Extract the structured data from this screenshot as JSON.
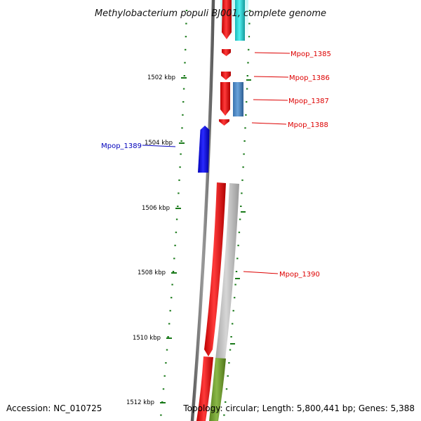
{
  "title": "Methylobacterium populi BJ001, complete genome",
  "footer": {
    "accession": "Accession: NC_010725",
    "summary": "Topology: circular; Length: 5,800,441 bp; Genes: 5,388"
  },
  "colors": {
    "backbone": "#777777",
    "ticks": "#1a7a1a",
    "label_forward": "#dd0000",
    "label_reverse": "#0000bb"
  },
  "ruler": [
    {
      "label": "1502 kbp"
    },
    {
      "label": "1504 kbp"
    },
    {
      "label": "1506 kbp"
    },
    {
      "label": "1508 kbp"
    },
    {
      "label": "1510 kbp"
    },
    {
      "label": "1512 kbp"
    }
  ],
  "gene_labels": [
    {
      "text": "Mpop_1385",
      "strand": "forward"
    },
    {
      "text": "Mpop_1386",
      "strand": "forward"
    },
    {
      "text": "Mpop_1387",
      "strand": "forward"
    },
    {
      "text": "Mpop_1388",
      "strand": "forward"
    },
    {
      "text": "Mpop_1389",
      "strand": "reverse"
    },
    {
      "text": "Mpop_1390",
      "strand": "forward"
    }
  ],
  "features": [
    {
      "name": "red-cds",
      "color": "#ee1111"
    },
    {
      "name": "cyan-cds",
      "color": "#22d4d4"
    },
    {
      "name": "steel-blue-cds",
      "color": "#4a86c4"
    },
    {
      "name": "blue-cds",
      "color": "#1111ee"
    },
    {
      "name": "gray-cds",
      "color": "#bbbbbb"
    },
    {
      "name": "olive-cds",
      "color": "#6f9a2a"
    }
  ]
}
